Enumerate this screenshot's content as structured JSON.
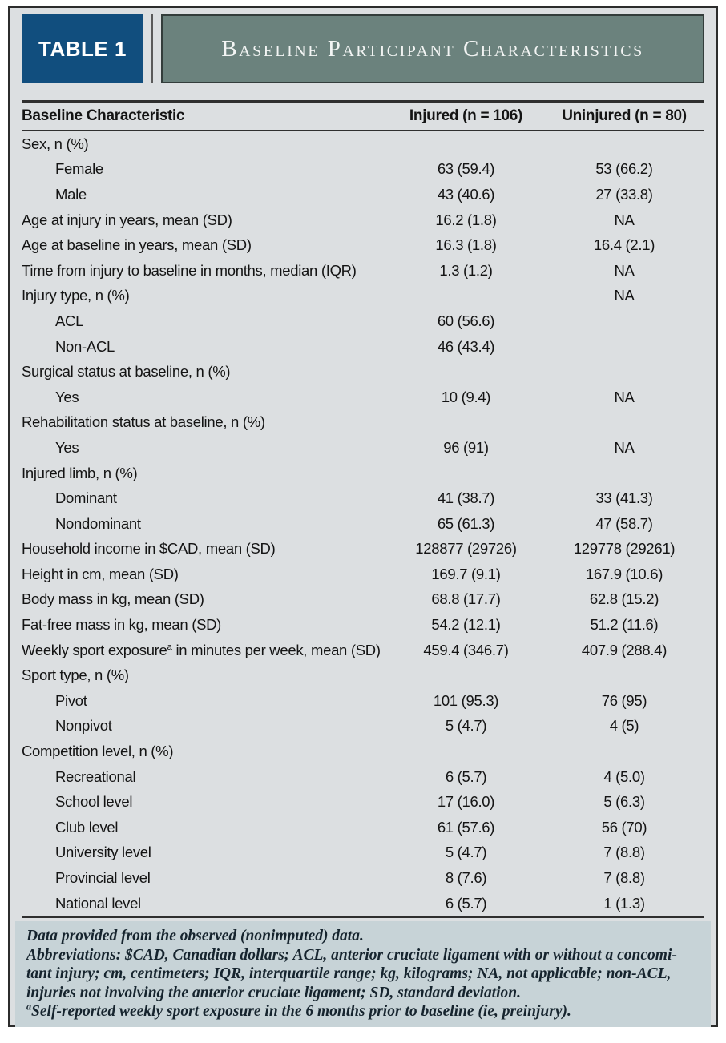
{
  "header": {
    "badge": "TABLE 1",
    "title": "Baseline Participant Characteristics"
  },
  "columns": [
    "Baseline Characteristic",
    "Injured (n = 106)",
    "Uninjured (n = 80)"
  ],
  "rows": [
    {
      "label": "Sex, n (%)",
      "indent": 0,
      "injured": "",
      "uninjured": ""
    },
    {
      "label": "Female",
      "indent": 1,
      "injured": "63 (59.4)",
      "uninjured": "53 (66.2)"
    },
    {
      "label": "Male",
      "indent": 1,
      "injured": "43 (40.6)",
      "uninjured": "27 (33.8)"
    },
    {
      "label": "Age at injury in years, mean (SD)",
      "indent": 0,
      "injured": "16.2 (1.8)",
      "uninjured": "NA"
    },
    {
      "label": "Age at baseline in years, mean (SD)",
      "indent": 0,
      "injured": "16.3 (1.8)",
      "uninjured": "16.4 (2.1)"
    },
    {
      "label": "Time from injury to baseline in months, median (IQR)",
      "indent": 0,
      "injured": "1.3 (1.2)",
      "uninjured": "NA"
    },
    {
      "label": "Injury type, n (%)",
      "indent": 0,
      "injured": "",
      "uninjured": "NA"
    },
    {
      "label": "ACL",
      "indent": 1,
      "injured": "60 (56.6)",
      "uninjured": ""
    },
    {
      "label": "Non-ACL",
      "indent": 1,
      "injured": "46 (43.4)",
      "uninjured": ""
    },
    {
      "label": "Surgical status at baseline, n (%)",
      "indent": 0,
      "injured": "",
      "uninjured": ""
    },
    {
      "label": "Yes",
      "indent": 1,
      "injured": "10 (9.4)",
      "uninjured": "NA"
    },
    {
      "label": "Rehabilitation status at baseline, n (%)",
      "indent": 0,
      "injured": "",
      "uninjured": ""
    },
    {
      "label": "Yes",
      "indent": 1,
      "injured": "96 (91)",
      "uninjured": "NA"
    },
    {
      "label": "Injured limb, n (%)",
      "indent": 0,
      "injured": "",
      "uninjured": ""
    },
    {
      "label": "Dominant",
      "indent": 1,
      "injured": "41 (38.7)",
      "uninjured": "33 (41.3)"
    },
    {
      "label": "Nondominant",
      "indent": 1,
      "injured": "65 (61.3)",
      "uninjured": "47 (58.7)"
    },
    {
      "label": "Household income in $CAD, mean (SD)",
      "indent": 0,
      "injured": "128877 (29726)",
      "uninjured": "129778 (29261)"
    },
    {
      "label": "Height in cm, mean (SD)",
      "indent": 0,
      "injured": "169.7 (9.1)",
      "uninjured": "167.9 (10.6)"
    },
    {
      "label": "Body mass in kg, mean (SD)",
      "indent": 0,
      "injured": "68.8 (17.7)",
      "uninjured": "62.8 (15.2)"
    },
    {
      "label": "Fat-free mass in kg, mean (SD)",
      "indent": 0,
      "injured": "54.2 (12.1)",
      "uninjured": "51.2 (11.6)"
    },
    {
      "label": "Weekly sport exposure^a in minutes per week, mean (SD)",
      "indent": 0,
      "injured": "459.4 (346.7)",
      "uninjured": "407.9 (288.4)"
    },
    {
      "label": "Sport type, n (%)",
      "indent": 0,
      "injured": "",
      "uninjured": ""
    },
    {
      "label": "Pivot",
      "indent": 1,
      "injured": "101 (95.3)",
      "uninjured": "76 (95)"
    },
    {
      "label": "Nonpivot",
      "indent": 1,
      "injured": "5 (4.7)",
      "uninjured": "4 (5)"
    },
    {
      "label": "Competition level, n (%)",
      "indent": 0,
      "injured": "",
      "uninjured": ""
    },
    {
      "label": "Recreational",
      "indent": 1,
      "injured": "6 (5.7)",
      "uninjured": "4 (5.0)"
    },
    {
      "label": "School level",
      "indent": 1,
      "injured": "17 (16.0)",
      "uninjured": "5 (6.3)"
    },
    {
      "label": "Club level",
      "indent": 1,
      "injured": "61 (57.6)",
      "uninjured": "56 (70)"
    },
    {
      "label": "University level",
      "indent": 1,
      "injured": "5 (4.7)",
      "uninjured": "7 (8.8)"
    },
    {
      "label": "Provincial level",
      "indent": 1,
      "injured": "8 (7.6)",
      "uninjured": "7 (8.8)"
    },
    {
      "label": "National level",
      "indent": 1,
      "injured": "6 (5.7)",
      "uninjured": "1 (1.3)"
    }
  ],
  "footnotes": [
    "Data provided from the observed (nonimputed) data.",
    "Abbreviations: $CAD, Canadian dollars; ACL, anterior cruciate ligament with or without a concomi-",
    "tant injury; cm, centimeters; IQR, interquartile range; kg, kilograms; NA, not applicable; non-ACL,",
    "injuries not involving the anterior cruciate ligament; SD, standard deviation.",
    "^aSelf-reported weekly sport exposure in the 6 months prior to baseline (ie, preinjury)."
  ],
  "colors": {
    "blue": "#114e7e",
    "slate": "#6b827d",
    "panel-bg": "#dcdfe1",
    "footer-bg": "#c7d3d7",
    "ink": "#141414",
    "footer-ink": "#16242e",
    "rule": "#2f2f2f"
  }
}
